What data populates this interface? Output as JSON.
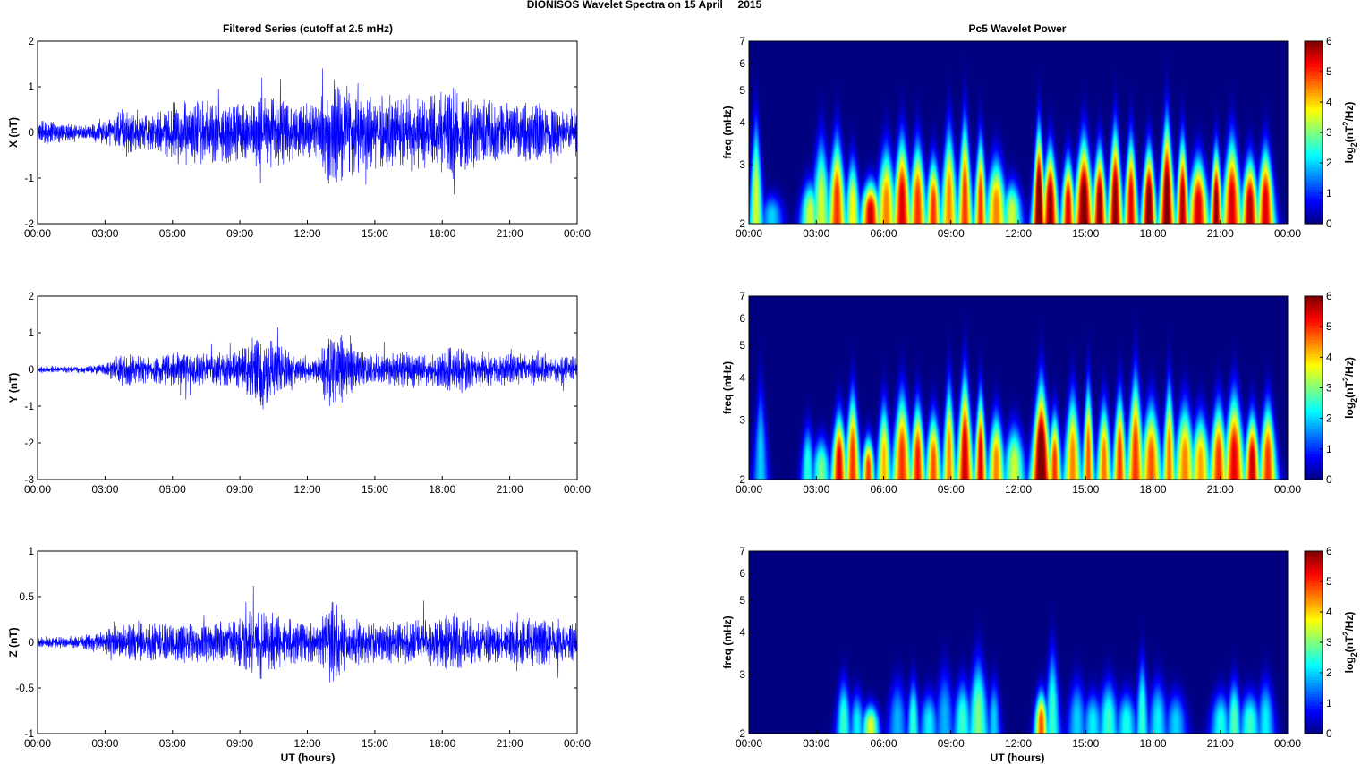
{
  "figure": {
    "suptitle": "DIONISOS Wavelet Spectra on 15 April     2015",
    "left_title": "Filtered Series (cutoff at 2.5 mHz)",
    "right_title": "Pc5 Wavelet Power",
    "xlabel": "UT (hours)"
  },
  "chart_data": [
    {
      "type": "line",
      "component": "X",
      "ylabel": "X (nT)",
      "xlim": [
        0,
        24
      ],
      "ylim": [
        -2,
        2
      ],
      "yticks": [
        -2,
        -1,
        0,
        1,
        2
      ],
      "ytick_labels": [
        "-2",
        "-1",
        "0",
        "1",
        "2"
      ],
      "xticks": [
        0,
        3,
        6,
        9,
        12,
        15,
        18,
        21,
        24
      ],
      "xtick_labels": [
        "00:00",
        "03:00",
        "06:00",
        "09:00",
        "12:00",
        "15:00",
        "18:00",
        "21:00",
        "00:00"
      ],
      "color": "#0000ff",
      "amplitude_envelope": {
        "hours": [
          0,
          1,
          2,
          3,
          3.8,
          4.5,
          5.5,
          6.2,
          7,
          8,
          9,
          10,
          10.8,
          11.5,
          12.5,
          13,
          13.5,
          14.5,
          15.5,
          16.5,
          17.5,
          18.5,
          19.5,
          20.5,
          21.5,
          22.5,
          23.5,
          24
        ],
        "nT": [
          0.35,
          0.28,
          0.2,
          0.35,
          0.75,
          0.5,
          0.65,
          0.9,
          0.95,
          0.85,
          0.9,
          1.0,
          0.95,
          0.8,
          0.85,
          1.6,
          1.4,
          1.1,
          1.05,
          1.1,
          1.05,
          1.3,
          0.95,
          0.9,
          0.85,
          0.85,
          0.55,
          0.9
        ]
      }
    },
    {
      "type": "line",
      "component": "Y",
      "ylabel": "Y (nT)",
      "xlim": [
        0,
        24
      ],
      "ylim": [
        -3,
        2
      ],
      "yticks": [
        -3,
        -2,
        -1,
        0,
        1,
        2
      ],
      "ytick_labels": [
        "-3",
        "-2",
        "-1",
        "0",
        "1",
        "2"
      ],
      "xticks": [
        0,
        3,
        6,
        9,
        12,
        15,
        18,
        21,
        24
      ],
      "xtick_labels": [
        "00:00",
        "03:00",
        "06:00",
        "09:00",
        "12:00",
        "15:00",
        "18:00",
        "21:00",
        "00:00"
      ],
      "color": "#0000ff",
      "amplitude_envelope": {
        "hours": [
          0,
          1,
          2,
          3,
          3.8,
          4.5,
          5.5,
          6.2,
          7,
          8,
          9,
          10,
          10.8,
          11.5,
          12.5,
          13,
          13.5,
          14.5,
          15.5,
          16.5,
          17.5,
          18.5,
          19.5,
          20.5,
          21.5,
          22.5,
          23.5,
          24
        ],
        "nT": [
          0.15,
          0.12,
          0.12,
          0.2,
          0.7,
          0.5,
          0.55,
          0.6,
          0.55,
          0.6,
          0.75,
          1.5,
          0.85,
          0.5,
          0.55,
          1.6,
          1.2,
          0.6,
          0.55,
          0.65,
          0.6,
          0.9,
          0.65,
          0.6,
          0.55,
          0.6,
          0.45,
          0.6
        ]
      }
    },
    {
      "type": "line",
      "component": "Z",
      "ylabel": "Z (nT)",
      "xlim": [
        0,
        24
      ],
      "ylim": [
        -1,
        1
      ],
      "yticks": [
        -1,
        -0.5,
        0,
        0.5,
        1
      ],
      "ytick_labels": [
        "-1",
        "-0.5",
        "0",
        "0.5",
        "1"
      ],
      "xticks": [
        0,
        3,
        6,
        9,
        12,
        15,
        18,
        21,
        24
      ],
      "xtick_labels": [
        "00:00",
        "03:00",
        "06:00",
        "09:00",
        "12:00",
        "15:00",
        "18:00",
        "21:00",
        "00:00"
      ],
      "color": "#0000ff",
      "amplitude_envelope": {
        "hours": [
          0,
          1,
          2,
          3,
          3.8,
          4.5,
          5.5,
          6.2,
          7,
          8,
          9,
          10,
          10.8,
          11.5,
          12.5,
          13,
          13.5,
          14.5,
          15.5,
          16.5,
          17.5,
          18.5,
          19.5,
          20.5,
          21.5,
          22.5,
          23.5,
          24
        ],
        "nT": [
          0.07,
          0.08,
          0.1,
          0.18,
          0.25,
          0.3,
          0.28,
          0.3,
          0.28,
          0.28,
          0.35,
          0.55,
          0.35,
          0.3,
          0.3,
          0.65,
          0.45,
          0.3,
          0.3,
          0.3,
          0.35,
          0.42,
          0.32,
          0.3,
          0.35,
          0.35,
          0.25,
          0.3
        ]
      }
    },
    {
      "type": "heatmap",
      "component": "X",
      "ylabel": "freq (mHz)",
      "colorbar_label": "log2(nT2/Hz)",
      "colorbar_label_parts": {
        "base": "log",
        "sub": "2",
        "open": "(nT",
        "sup": "2",
        "close": "/Hz)"
      },
      "colorbar_ticks": [
        "0",
        "1",
        "2",
        "3",
        "4",
        "5",
        "6"
      ],
      "clim": [
        0,
        6
      ],
      "colormap": "jet",
      "xlim": [
        0,
        24
      ],
      "ylim": [
        2,
        7
      ],
      "yscale": "log",
      "yticks": [
        2,
        3,
        4,
        5,
        6,
        7
      ],
      "ytick_labels": [
        "2",
        "3",
        "4",
        "5",
        "6",
        "7"
      ],
      "xticks": [
        0,
        3,
        6,
        9,
        12,
        15,
        18,
        21,
        24
      ],
      "xtick_labels": [
        "00:00",
        "03:00",
        "06:00",
        "09:00",
        "12:00",
        "15:00",
        "18:00",
        "21:00",
        "00:00"
      ],
      "bursts": [
        [
          0.3,
          3.8,
          3.5
        ],
        [
          1.0,
          2.4,
          2.0
        ],
        [
          2.7,
          2.6,
          3.5
        ],
        [
          3.2,
          3.4,
          3.5
        ],
        [
          3.9,
          3.4,
          5.0
        ],
        [
          4.6,
          3.0,
          3.8
        ],
        [
          5.4,
          2.6,
          5.6
        ],
        [
          6.1,
          3.2,
          4.5
        ],
        [
          6.8,
          3.4,
          5.5
        ],
        [
          7.5,
          3.3,
          5.0
        ],
        [
          8.2,
          3.0,
          5.0
        ],
        [
          8.9,
          3.6,
          4.5
        ],
        [
          9.6,
          3.8,
          5.0
        ],
        [
          10.3,
          3.4,
          5.0
        ],
        [
          11.0,
          3.0,
          4.5
        ],
        [
          11.7,
          2.6,
          3.5
        ],
        [
          12.9,
          3.6,
          6.5
        ],
        [
          13.4,
          3.2,
          6.0
        ],
        [
          14.2,
          3.0,
          5.5
        ],
        [
          14.9,
          3.4,
          6.2
        ],
        [
          15.6,
          3.2,
          6.0
        ],
        [
          16.3,
          3.6,
          6.0
        ],
        [
          17.0,
          3.4,
          5.5
        ],
        [
          17.8,
          3.2,
          6.3
        ],
        [
          18.6,
          3.8,
          6.2
        ],
        [
          19.3,
          3.4,
          5.8
        ],
        [
          20.0,
          3.0,
          5.5
        ],
        [
          20.8,
          3.2,
          6.0
        ],
        [
          21.5,
          3.4,
          5.5
        ],
        [
          22.3,
          3.0,
          5.8
        ],
        [
          23.0,
          3.2,
          5.5
        ]
      ]
    },
    {
      "type": "heatmap",
      "component": "Y",
      "ylabel": "freq (mHz)",
      "colorbar_label": "log2(nT2/Hz)",
      "colorbar_label_parts": {
        "base": "log",
        "sub": "2",
        "open": "(nT",
        "sup": "2",
        "close": "/Hz)"
      },
      "colorbar_ticks": [
        "0",
        "1",
        "2",
        "3",
        "4",
        "5",
        "6"
      ],
      "clim": [
        0,
        6
      ],
      "colormap": "jet",
      "xlim": [
        0,
        24
      ],
      "ylim": [
        2,
        7
      ],
      "yscale": "log",
      "yticks": [
        2,
        3,
        4,
        5,
        6,
        7
      ],
      "ytick_labels": [
        "2",
        "3",
        "4",
        "5",
        "6",
        "7"
      ],
      "xticks": [
        0,
        3,
        6,
        9,
        12,
        15,
        18,
        21,
        24
      ],
      "xtick_labels": [
        "00:00",
        "03:00",
        "06:00",
        "09:00",
        "12:00",
        "15:00",
        "18:00",
        "21:00",
        "00:00"
      ],
      "bursts": [
        [
          0.5,
          3.6,
          2.0
        ],
        [
          2.6,
          2.8,
          2.5
        ],
        [
          3.2,
          2.6,
          3.0
        ],
        [
          4.0,
          3.0,
          5.5
        ],
        [
          4.6,
          3.4,
          5.0
        ],
        [
          5.3,
          2.6,
          5.0
        ],
        [
          6.0,
          3.2,
          4.2
        ],
        [
          6.8,
          3.4,
          5.0
        ],
        [
          7.5,
          3.2,
          5.2
        ],
        [
          8.2,
          3.0,
          4.8
        ],
        [
          8.9,
          3.6,
          4.5
        ],
        [
          9.6,
          3.8,
          5.6
        ],
        [
          10.3,
          3.4,
          5.5
        ],
        [
          11.0,
          3.0,
          4.5
        ],
        [
          11.8,
          2.8,
          3.5
        ],
        [
          13.0,
          3.6,
          6.5
        ],
        [
          13.6,
          3.0,
          5.0
        ],
        [
          14.4,
          3.4,
          4.5
        ],
        [
          15.1,
          3.6,
          4.8
        ],
        [
          15.8,
          3.2,
          4.6
        ],
        [
          16.5,
          3.4,
          5.0
        ],
        [
          17.2,
          3.8,
          5.0
        ],
        [
          17.9,
          3.2,
          4.8
        ],
        [
          18.7,
          3.6,
          4.6
        ],
        [
          19.4,
          3.2,
          4.5
        ],
        [
          20.1,
          3.0,
          4.3
        ],
        [
          20.9,
          3.2,
          5.0
        ],
        [
          21.6,
          3.4,
          5.4
        ],
        [
          22.4,
          3.0,
          5.6
        ],
        [
          23.1,
          3.2,
          5.0
        ]
      ]
    },
    {
      "type": "heatmap",
      "component": "Z",
      "ylabel": "freq (mHz)",
      "colorbar_label": "log2(nT2/Hz)",
      "colorbar_label_parts": {
        "base": "log",
        "sub": "2",
        "open": "(nT",
        "sup": "2",
        "close": "/Hz)"
      },
      "colorbar_ticks": [
        "0",
        "1",
        "2",
        "3",
        "4",
        "5",
        "6"
      ],
      "clim": [
        0,
        6
      ],
      "colormap": "jet",
      "xlim": [
        0,
        24
      ],
      "ylim": [
        2,
        7
      ],
      "yscale": "log",
      "yticks": [
        2,
        3,
        4,
        5,
        6,
        7
      ],
      "ytick_labels": [
        "2",
        "3",
        "4",
        "5",
        "6",
        "7"
      ],
      "xticks": [
        0,
        3,
        6,
        9,
        12,
        15,
        18,
        21,
        24
      ],
      "xtick_labels": [
        "00:00",
        "03:00",
        "06:00",
        "09:00",
        "12:00",
        "15:00",
        "18:00",
        "21:00",
        "00:00"
      ],
      "bursts": [
        [
          4.2,
          2.8,
          2.6
        ],
        [
          4.8,
          2.6,
          2.2
        ],
        [
          5.4,
          2.4,
          3.6
        ],
        [
          6.6,
          2.8,
          1.8
        ],
        [
          7.3,
          2.8,
          2.6
        ],
        [
          8.0,
          2.6,
          2.2
        ],
        [
          8.7,
          3.0,
          1.8
        ],
        [
          9.5,
          2.8,
          2.6
        ],
        [
          10.2,
          3.2,
          3.0
        ],
        [
          10.9,
          2.8,
          2.0
        ],
        [
          13.0,
          2.6,
          4.8
        ],
        [
          13.5,
          3.4,
          2.6
        ],
        [
          14.6,
          2.8,
          2.0
        ],
        [
          15.3,
          2.6,
          2.2
        ],
        [
          16.0,
          2.8,
          2.6
        ],
        [
          16.8,
          2.6,
          2.4
        ],
        [
          17.5,
          3.2,
          2.6
        ],
        [
          18.2,
          2.8,
          2.2
        ],
        [
          19.0,
          2.6,
          2.0
        ],
        [
          21.0,
          2.6,
          2.4
        ],
        [
          21.6,
          2.8,
          2.8
        ],
        [
          22.3,
          2.6,
          2.6
        ],
        [
          23.0,
          2.8,
          2.2
        ]
      ]
    }
  ]
}
